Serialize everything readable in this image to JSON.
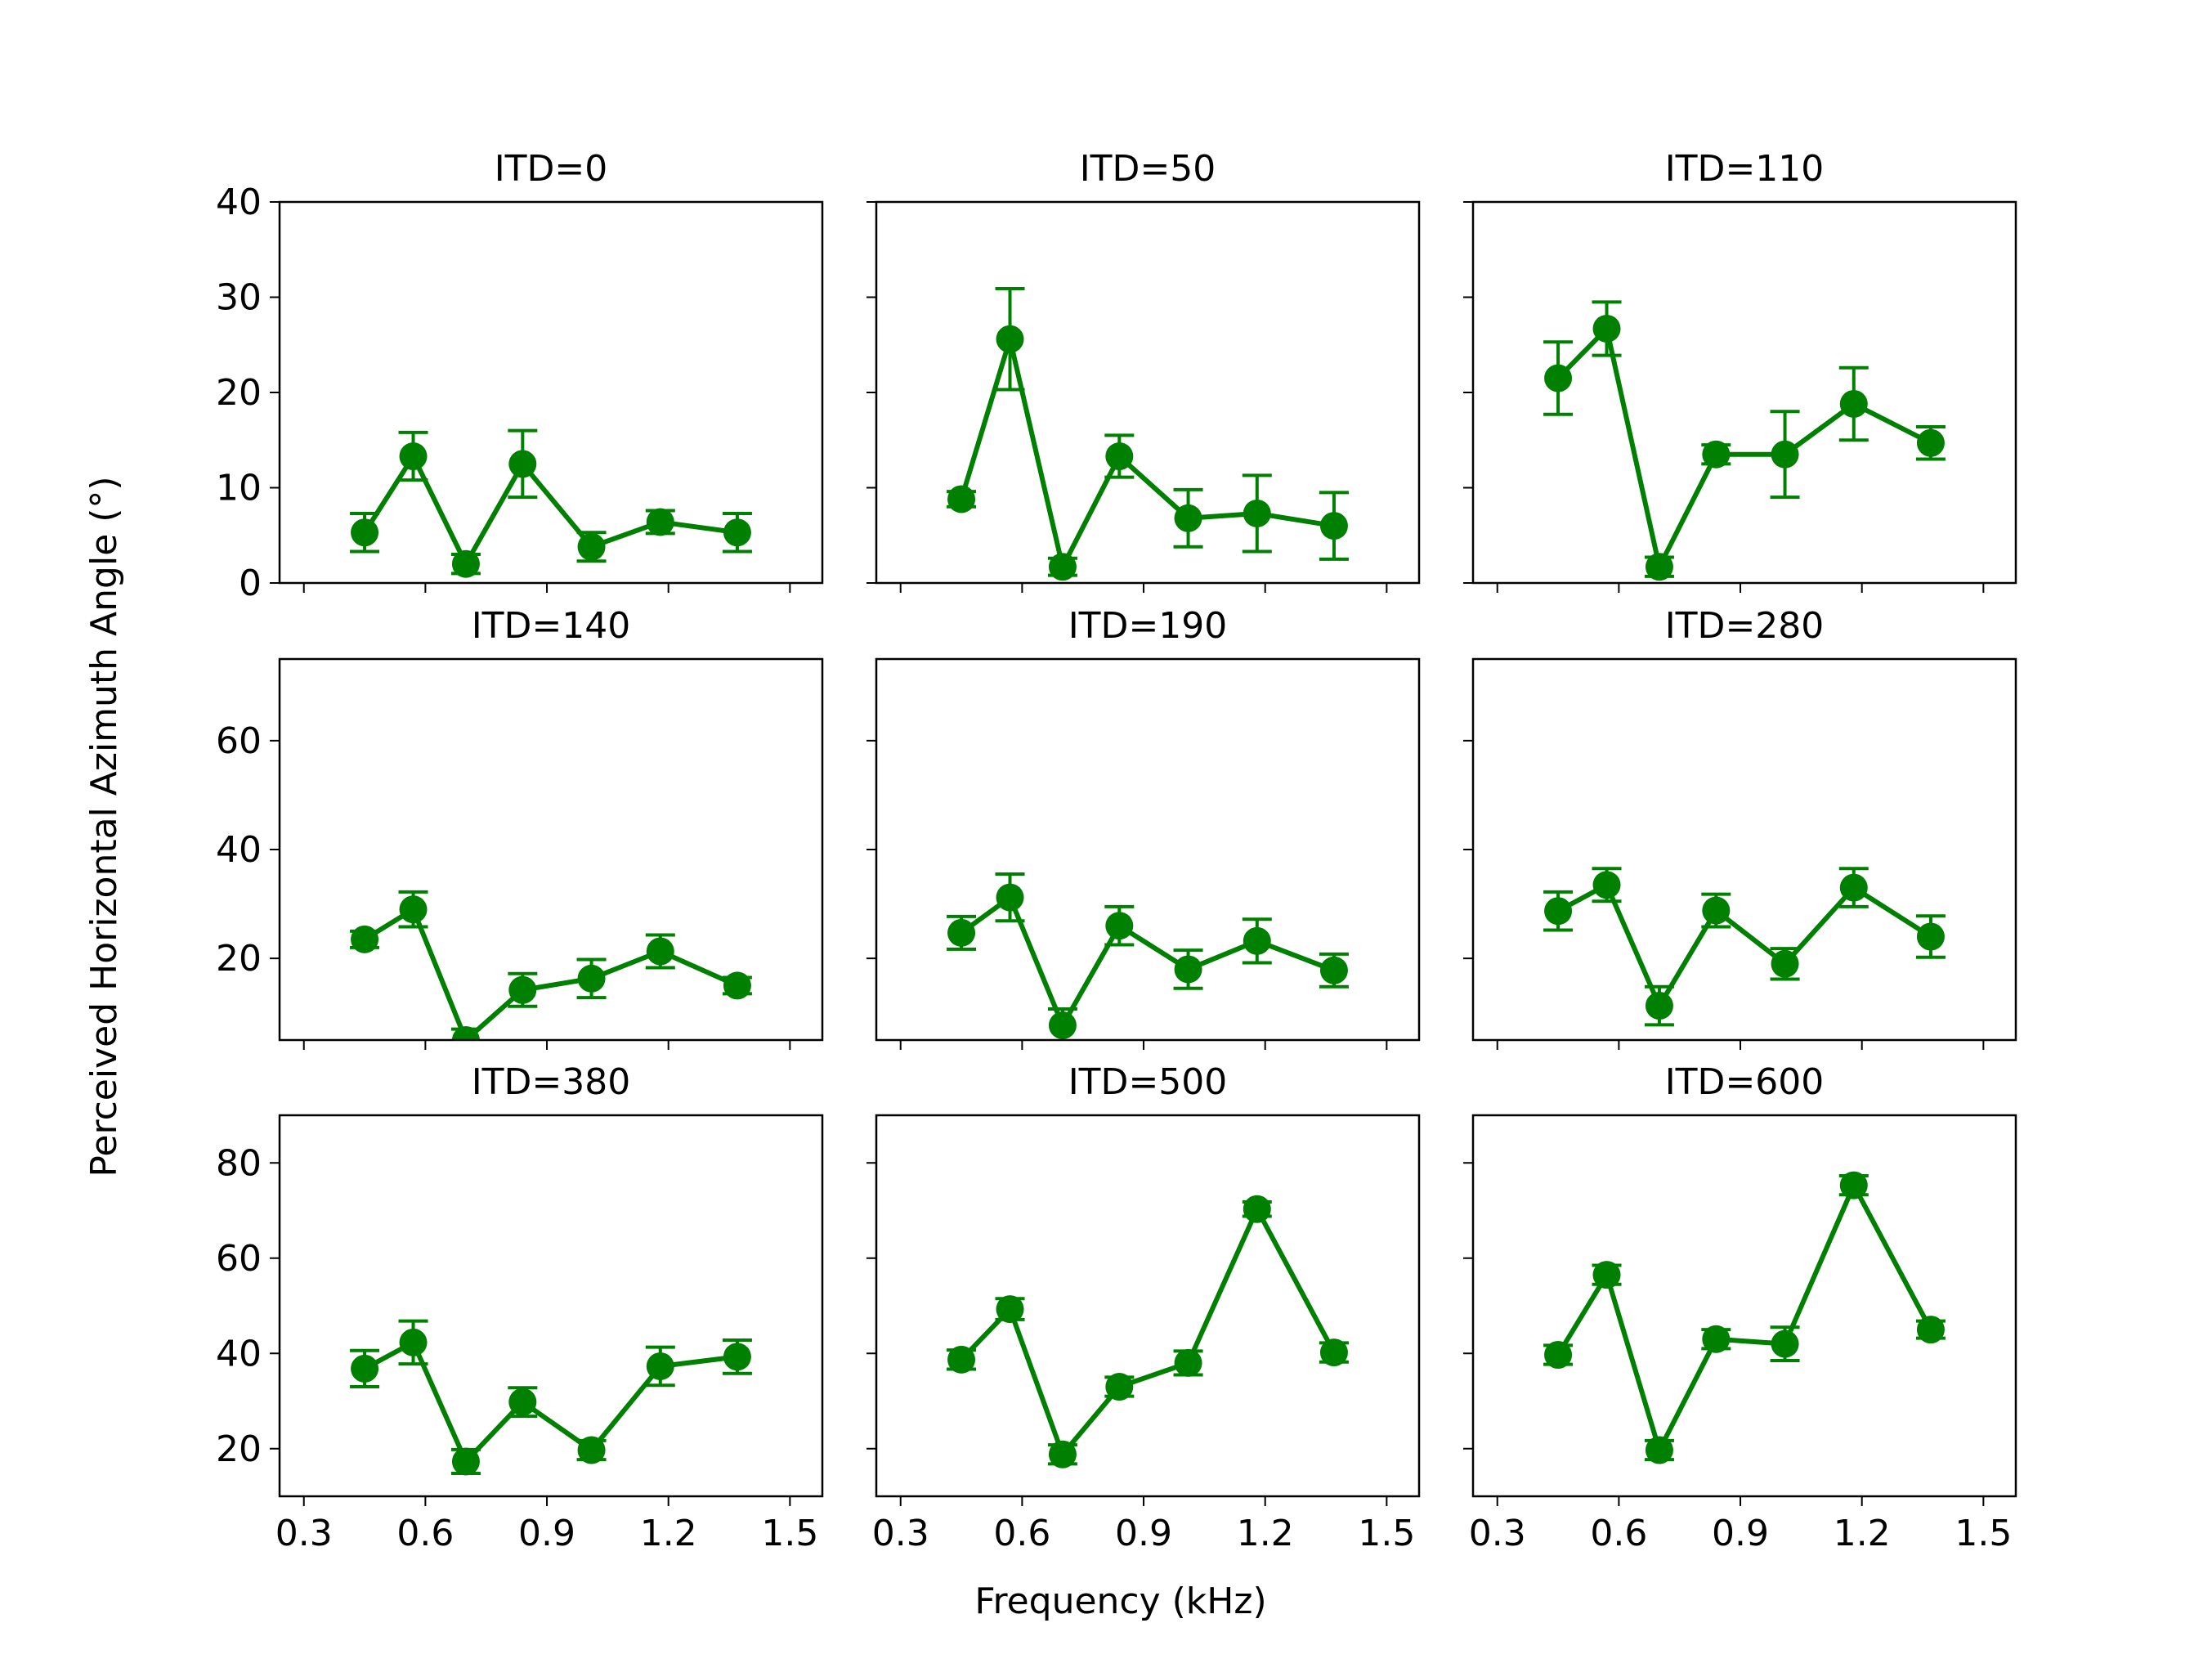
{
  "figure": {
    "xlabel": "Frequency (kHz)",
    "ylabel": "Perceived Horizontal Azimuth Angle (°)"
  },
  "colors": {
    "series": "#008000",
    "axes": "#000000"
  },
  "chart_data": [
    {
      "type": "line",
      "title": "ITD=0",
      "x": [
        0.45,
        0.57,
        0.7,
        0.84,
        1.01,
        1.18,
        1.37
      ],
      "y": [
        5.3,
        13.3,
        2.0,
        12.5,
        3.8,
        6.4,
        5.3
      ],
      "yerr": [
        2.0,
        2.5,
        1.0,
        3.5,
        1.5,
        1.2,
        2.0
      ],
      "ylim": [
        0,
        40
      ],
      "yticks": [
        0,
        10,
        20,
        30,
        40
      ],
      "xlim": [
        0.24,
        1.58
      ],
      "xticks": [
        "0.3",
        "0.6",
        "0.9",
        "1.2",
        "1.5"
      ]
    },
    {
      "type": "line",
      "title": "ITD=50",
      "x": [
        0.45,
        0.57,
        0.7,
        0.84,
        1.01,
        1.18,
        1.37
      ],
      "y": [
        8.8,
        25.6,
        1.7,
        13.3,
        6.8,
        7.3,
        6.0
      ],
      "yerr": [
        0.8,
        5.3,
        0.9,
        2.2,
        3.0,
        4.0,
        3.5
      ],
      "ylim": [
        0,
        40
      ],
      "yticks": [
        0,
        10,
        20,
        30,
        40
      ],
      "xlim": [
        0.24,
        1.58
      ],
      "xticks": [
        "0.3",
        "0.6",
        "0.9",
        "1.2",
        "1.5"
      ]
    },
    {
      "type": "line",
      "title": "ITD=110",
      "x": [
        0.45,
        0.57,
        0.7,
        0.84,
        1.01,
        1.18,
        1.37
      ],
      "y": [
        21.5,
        26.7,
        1.7,
        13.5,
        13.5,
        18.8,
        14.7
      ],
      "yerr": [
        3.8,
        2.8,
        1.0,
        1.0,
        4.5,
        3.8,
        1.7
      ],
      "ylim": [
        0,
        40
      ],
      "yticks": [
        0,
        10,
        20,
        30,
        40
      ],
      "xlim": [
        0.24,
        1.58
      ],
      "xticks": [
        "0.3",
        "0.6",
        "0.9",
        "1.2",
        "1.5"
      ]
    },
    {
      "type": "line",
      "title": "ITD=140",
      "x": [
        0.45,
        0.57,
        0.7,
        0.84,
        1.01,
        1.18,
        1.37
      ],
      "y": [
        23.5,
        29.0,
        5.0,
        14.2,
        16.3,
        21.3,
        15.0
      ],
      "yerr": [
        1.5,
        3.2,
        2.0,
        3.0,
        3.5,
        3.0,
        1.5
      ],
      "ylim": [
        5,
        75
      ],
      "yticks": [
        20,
        40,
        60
      ],
      "xlim": [
        0.24,
        1.58
      ],
      "xticks": [
        "0.3",
        "0.6",
        "0.9",
        "1.2",
        "1.5"
      ]
    },
    {
      "type": "line",
      "title": "ITD=190",
      "x": [
        0.45,
        0.57,
        0.7,
        0.84,
        1.01,
        1.18,
        1.37
      ],
      "y": [
        24.7,
        31.2,
        7.7,
        26.0,
        18.0,
        23.2,
        17.8
      ],
      "yerr": [
        3.0,
        4.3,
        3.0,
        3.5,
        3.5,
        4.0,
        3.0
      ],
      "ylim": [
        5,
        75
      ],
      "yticks": [
        20,
        40,
        60
      ],
      "xlim": [
        0.24,
        1.58
      ],
      "xticks": [
        "0.3",
        "0.6",
        "0.9",
        "1.2",
        "1.5"
      ]
    },
    {
      "type": "line",
      "title": "ITD=280",
      "x": [
        0.45,
        0.57,
        0.7,
        0.84,
        1.01,
        1.18,
        1.37
      ],
      "y": [
        28.7,
        33.5,
        11.3,
        28.8,
        19.0,
        33.0,
        24.0
      ],
      "yerr": [
        3.5,
        3.0,
        3.5,
        3.0,
        2.8,
        3.5,
        3.8
      ],
      "ylim": [
        5,
        75
      ],
      "yticks": [
        20,
        40,
        60
      ],
      "xlim": [
        0.24,
        1.58
      ],
      "xticks": [
        "0.3",
        "0.6",
        "0.9",
        "1.2",
        "1.5"
      ]
    },
    {
      "type": "line",
      "title": "ITD=380",
      "x": [
        0.45,
        0.57,
        0.7,
        0.84,
        1.01,
        1.18,
        1.37
      ],
      "y": [
        36.8,
        42.3,
        17.3,
        29.8,
        19.7,
        37.3,
        39.3
      ],
      "yerr": [
        3.8,
        4.5,
        2.5,
        3.0,
        2.0,
        4.0,
        3.5
      ],
      "ylim": [
        10,
        90
      ],
      "yticks": [
        20,
        40,
        60,
        80
      ],
      "xlim": [
        0.24,
        1.58
      ],
      "xticks": [
        "0.3",
        "0.6",
        "0.9",
        "1.2",
        "1.5"
      ]
    },
    {
      "type": "line",
      "title": "ITD=500",
      "x": [
        0.45,
        0.57,
        0.7,
        0.84,
        1.01,
        1.18,
        1.37
      ],
      "y": [
        38.7,
        49.3,
        18.8,
        33.0,
        38.0,
        70.3,
        40.2
      ],
      "yerr": [
        2.0,
        2.2,
        2.0,
        2.0,
        2.5,
        1.5,
        2.0
      ],
      "ylim": [
        10,
        90
      ],
      "yticks": [
        20,
        40,
        60,
        80
      ],
      "xlim": [
        0.24,
        1.58
      ],
      "xticks": [
        "0.3",
        "0.6",
        "0.9",
        "1.2",
        "1.5"
      ]
    },
    {
      "type": "line",
      "title": "ITD=600",
      "x": [
        0.45,
        0.57,
        0.7,
        0.84,
        1.01,
        1.18,
        1.37
      ],
      "y": [
        39.7,
        56.5,
        19.7,
        43.0,
        42.0,
        75.3,
        45.0
      ],
      "yerr": [
        2.0,
        2.0,
        2.0,
        2.0,
        3.5,
        2.0,
        1.8
      ],
      "ylim": [
        10,
        90
      ],
      "yticks": [
        20,
        40,
        60,
        80
      ],
      "xlim": [
        0.24,
        1.58
      ],
      "xticks": [
        "0.3",
        "0.6",
        "0.9",
        "1.2",
        "1.5"
      ]
    }
  ]
}
